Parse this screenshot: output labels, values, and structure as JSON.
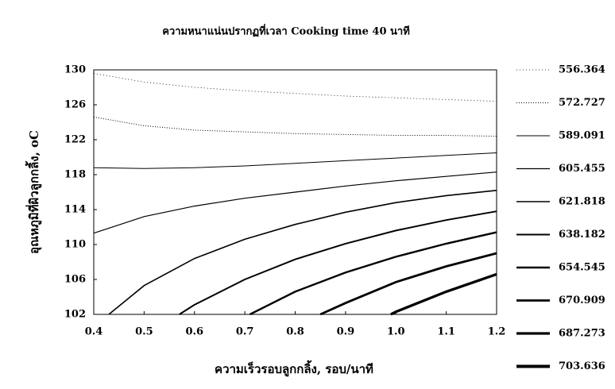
{
  "chart_data": {
    "type": "contour",
    "title": "ความหนาแน่นปรากฏที่เวลา Cooking time 40 นาที",
    "x_label": "ความเร็วรอบลูกกลิ้ง, รอบ/นาที",
    "y_label": "อุณหภูมิที่ผิวลูกกลิ้ง, oC",
    "xlim": [
      0.4,
      1.2
    ],
    "ylim": [
      102,
      130
    ],
    "xticks": [
      0.4,
      0.5,
      0.6,
      0.7,
      0.8,
      0.9,
      {
        "value": 1,
        "label": "1.0"
      },
      1.1,
      1.2
    ],
    "yticks": [
      102,
      106,
      110,
      114,
      118,
      122,
      126,
      130
    ],
    "series": [
      {
        "name": "556.364",
        "color": "#000000",
        "line_width": 0.8,
        "dash": "1 3",
        "x": [
          0.4,
          0.5,
          0.6,
          0.7,
          0.8,
          0.9,
          1.0,
          1.1,
          1.2
        ],
        "values": [
          129.6,
          128.6,
          128.0,
          127.6,
          127.3,
          127.0,
          126.8,
          126.6,
          126.4
        ]
      },
      {
        "name": "572.727",
        "color": "#000000",
        "line_width": 1,
        "dash": "1 2",
        "x": [
          0.4,
          0.5,
          0.6,
          0.7,
          0.8,
          0.9,
          1.0,
          1.1,
          1.2
        ],
        "values": [
          124.6,
          123.6,
          123.1,
          122.9,
          122.7,
          122.6,
          122.5,
          122.5,
          122.4
        ]
      },
      {
        "name": "589.091",
        "color": "#000000",
        "line_width": 1,
        "x": [
          0.4,
          0.5,
          0.6,
          0.7,
          0.8,
          0.9,
          1.0,
          1.1,
          1.2
        ],
        "values": [
          118.8,
          118.7,
          118.8,
          119.0,
          119.3,
          119.6,
          119.9,
          120.2,
          120.5
        ]
      },
      {
        "name": "605.455",
        "color": "#000000",
        "line_width": 1.2,
        "x": [
          0.4,
          0.5,
          0.6,
          0.7,
          0.8,
          0.9,
          1.0,
          1.1,
          1.2
        ],
        "values": [
          111.3,
          113.2,
          114.4,
          115.3,
          116.0,
          116.7,
          117.3,
          117.8,
          118.3
        ]
      },
      {
        "name": "621.818",
        "color": "#000000",
        "line_width": 1.6,
        "x": [
          0.43,
          0.5,
          0.6,
          0.7,
          0.8,
          0.9,
          1.0,
          1.1,
          1.2
        ],
        "values": [
          102,
          105.3,
          108.4,
          110.6,
          112.3,
          113.7,
          114.8,
          115.6,
          116.2
        ]
      },
      {
        "name": "638.182",
        "color": "#000000",
        "line_width": 2,
        "x": [
          0.57,
          0.6,
          0.7,
          0.8,
          0.9,
          1.0,
          1.1,
          1.2
        ],
        "values": [
          102,
          103.1,
          106.0,
          108.3,
          110.1,
          111.6,
          112.8,
          113.8
        ]
      },
      {
        "name": "654.545",
        "color": "#000000",
        "line_width": 2.4,
        "x": [
          0.71,
          0.8,
          0.9,
          1.0,
          1.1,
          1.2
        ],
        "values": [
          102,
          104.6,
          106.8,
          108.6,
          110.1,
          111.4
        ]
      },
      {
        "name": "670.909",
        "color": "#000000",
        "line_width": 2.8,
        "x": [
          0.85,
          0.9,
          1.0,
          1.1,
          1.2
        ],
        "values": [
          102,
          103.3,
          105.7,
          107.5,
          109.0
        ]
      },
      {
        "name": "687.273",
        "color": "#000000",
        "line_width": 3.3,
        "x": [
          0.99,
          1.0,
          1.1,
          1.2
        ],
        "values": [
          102,
          102.3,
          104.6,
          106.6
        ]
      },
      {
        "name": "703.636",
        "color": "#000000",
        "line_width": 4,
        "x": [],
        "values": []
      }
    ]
  }
}
